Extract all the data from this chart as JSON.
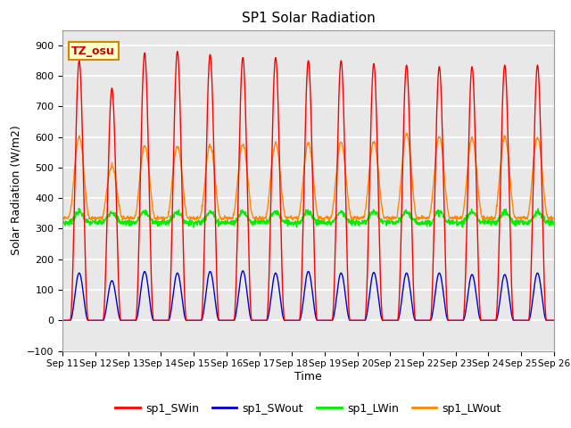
{
  "title": "SP1 Solar Radiation",
  "xlabel": "Time",
  "ylabel": "Solar Radiation (W/m2)",
  "ylim": [
    -100,
    950
  ],
  "yticks": [
    -100,
    0,
    100,
    200,
    300,
    400,
    500,
    600,
    700,
    800,
    900
  ],
  "x_tick_labels": [
    "Sep 11",
    "Sep 12",
    "Sep 13",
    "Sep 14",
    "Sep 15",
    "Sep 16",
    "Sep 17",
    "Sep 18",
    "Sep 19",
    "Sep 20",
    "Sep 21",
    "Sep 22",
    "Sep 23",
    "Sep 24",
    "Sep 25",
    "Sep 26"
  ],
  "colors": {
    "sp1_SWin": "#ff0000",
    "sp1_SWout": "#0000cc",
    "sp1_LWin": "#00ee00",
    "sp1_LWout": "#ff8800"
  },
  "annotation_text": "TZ_osu",
  "annotation_box_color": "#ffffcc",
  "annotation_border_color": "#cc8800",
  "background_color": "#e8e8e8",
  "grid_color": "#ffffff",
  "SW_peaks": [
    850,
    760,
    875,
    880,
    870,
    860,
    860,
    850,
    850,
    840,
    835,
    830,
    830,
    835,
    835
  ],
  "LW_out_peaks": [
    600,
    505,
    570,
    570,
    572,
    575,
    578,
    580,
    582,
    585,
    610,
    600,
    595,
    600,
    598
  ],
  "SWout_peaks": [
    155,
    130,
    160,
    155,
    160,
    162,
    155,
    160,
    155,
    157,
    155,
    155,
    150,
    150,
    155
  ],
  "LWin_base": 320,
  "LWout_base": 335,
  "LWin_amp": 35,
  "LWout_amp": 240,
  "n_days": 15,
  "pts_per_day": 96
}
